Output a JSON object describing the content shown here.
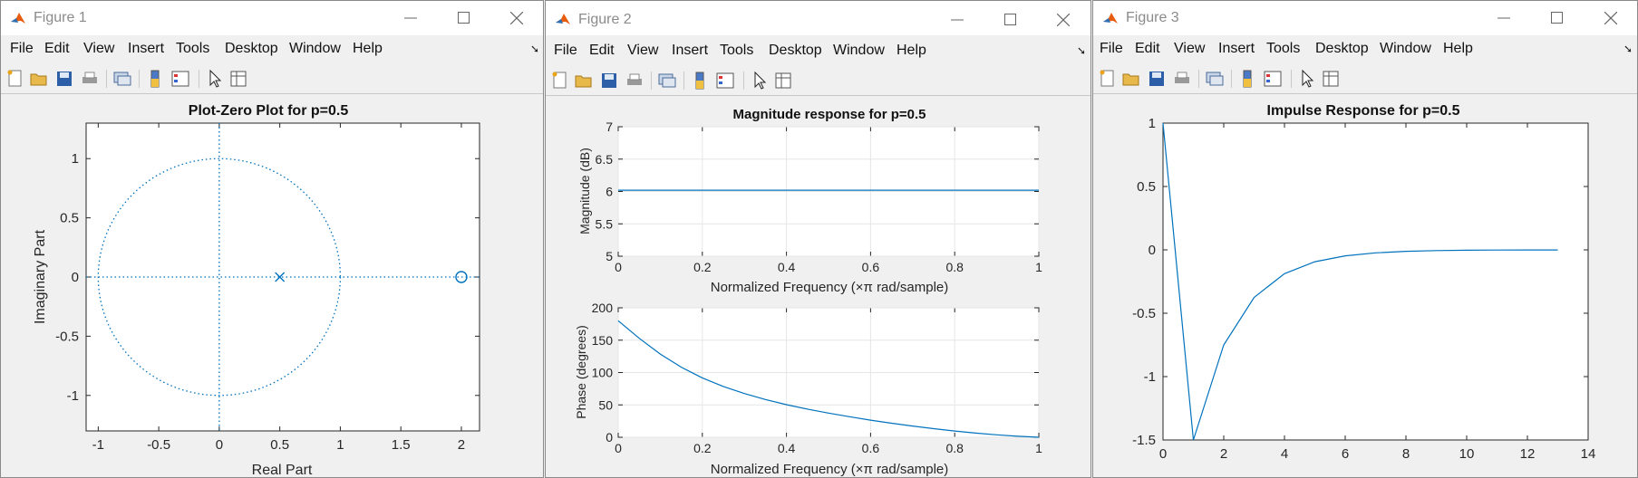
{
  "windows": [
    {
      "title": "Figure 1",
      "menu": [
        "File",
        "Edit",
        "View",
        "Insert",
        "Tools",
        "Desktop",
        "Window",
        "Help"
      ],
      "plot": {
        "title": "Plot-Zero Plot for p=0.5",
        "xlabel": "Real Part",
        "ylabel": "Imaginary Part",
        "xticks": [
          "-1",
          "-0.5",
          "0",
          "0.5",
          "1",
          "1.5",
          "2"
        ],
        "yticks": [
          "1",
          "0.5",
          "0",
          "-0.5",
          "-1"
        ]
      }
    },
    {
      "title": "Figure 2",
      "menu": [
        "File",
        "Edit",
        "View",
        "Insert",
        "Tools",
        "Desktop",
        "Window",
        "Help"
      ],
      "plot_top": {
        "title": "Magnitude response for p=0.5",
        "xlabel": "Normalized Frequency  (×π rad/sample)",
        "ylabel": "Magnitude (dB)",
        "xticks": [
          "0",
          "0.2",
          "0.4",
          "0.6",
          "0.8",
          "1"
        ],
        "yticks": [
          "7",
          "6.5",
          "6",
          "5.5",
          "5"
        ]
      },
      "plot_bottom": {
        "xlabel": "Normalized Frequency  (×π rad/sample)",
        "ylabel": "Phase (degrees)",
        "xticks": [
          "0",
          "0.2",
          "0.4",
          "0.6",
          "0.8",
          "1"
        ],
        "yticks": [
          "200",
          "150",
          "100",
          "50",
          "0"
        ]
      }
    },
    {
      "title": "Figure 3",
      "menu": [
        "File",
        "Edit",
        "View",
        "Insert",
        "Tools",
        "Desktop",
        "Window",
        "Help"
      ],
      "plot": {
        "title": "Impulse Response for p=0.5",
        "xticks": [
          "0",
          "2",
          "4",
          "6",
          "8",
          "10",
          "12",
          "14"
        ],
        "yticks": [
          "1",
          "0.5",
          "0",
          "-0.5",
          "-1",
          "-1.5"
        ]
      }
    }
  ],
  "chart_data": [
    {
      "type": "scatter",
      "title": "Plot-Zero Plot for p=0.5",
      "xlabel": "Real Part",
      "ylabel": "Imaginary Part",
      "xlim": [
        -1.1,
        2.15
      ],
      "ylim": [
        -1.3,
        1.3
      ],
      "poles": [
        [
          0.5,
          0
        ]
      ],
      "zeros": [
        [
          2,
          0
        ]
      ],
      "unit_circle": true
    },
    {
      "type": "line",
      "title": "Magnitude response for p=0.5",
      "xlabel": "Normalized Frequency  (×π rad/sample)",
      "ylabel": "Magnitude (dB)",
      "xlim": [
        0,
        1
      ],
      "ylim": [
        5,
        7
      ],
      "grid": true,
      "x": [
        0,
        0.2,
        0.4,
        0.6,
        0.8,
        1
      ],
      "y": [
        6.02,
        6.02,
        6.02,
        6.02,
        6.02,
        6.02
      ]
    },
    {
      "type": "line",
      "xlabel": "Normalized Frequency  (×π rad/sample)",
      "ylabel": "Phase (degrees)",
      "xlim": [
        0,
        1
      ],
      "ylim": [
        0,
        200
      ],
      "grid": true,
      "x": [
        0,
        0.05,
        0.1,
        0.15,
        0.2,
        0.25,
        0.3,
        0.35,
        0.4,
        0.45,
        0.5,
        0.55,
        0.6,
        0.65,
        0.7,
        0.75,
        0.8,
        0.85,
        0.9,
        0.95,
        1
      ],
      "y": [
        180,
        152.8,
        128.5,
        108.3,
        91.8,
        78.5,
        67.5,
        58.3,
        50.4,
        43.5,
        37.3,
        31.7,
        26.5,
        21.7,
        17.3,
        13.3,
        9.7,
        6.5,
        3.8,
        1.6,
        0
      ]
    },
    {
      "type": "line",
      "title": "Impulse Response for p=0.5",
      "xlim": [
        0,
        14
      ],
      "ylim": [
        -1.5,
        1
      ],
      "x": [
        0,
        1,
        2,
        3,
        4,
        5,
        6,
        7,
        8,
        9,
        10,
        11,
        12,
        13
      ],
      "y": [
        1,
        -1.5,
        -0.75,
        -0.375,
        -0.1875,
        -0.09375,
        -0.046875,
        -0.0234375,
        -0.01171875,
        -0.005859375,
        -0.0029296875,
        -0.00146484375,
        -0.000732421875,
        -0.0003662109375
      ]
    }
  ],
  "colors": {
    "line": "#0072bd",
    "grid": "#e6e6e6",
    "axes_bg": "#ffffff",
    "figure_bg": "#f0f0f0"
  }
}
